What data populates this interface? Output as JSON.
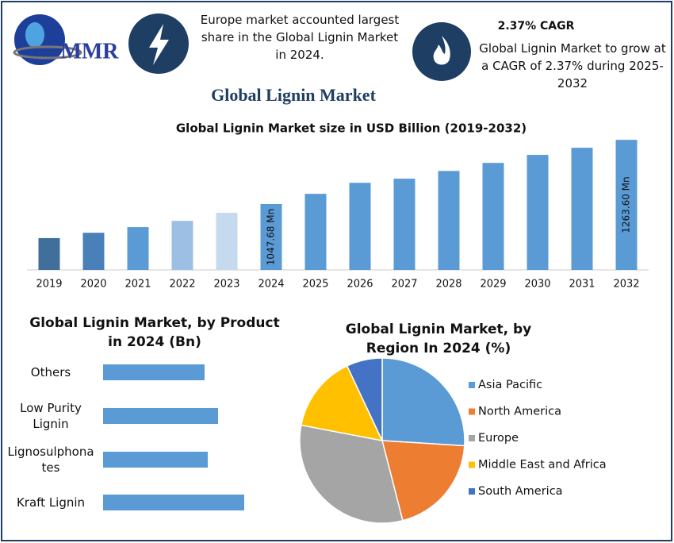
{
  "header": {
    "logo": "MMR",
    "note": "Europe market accounted largest share in the Global Lignin Market in 2024.",
    "cagr_title": "2.37% CAGR",
    "cagr_text": "Global Lignin Market to grow at a CAGR of 2.37% during 2025-2032",
    "title": "Global Lignin Market"
  },
  "chart_data": [
    {
      "type": "bar",
      "title": "Global Lignin Market size in USD Billion (2019-2032)",
      "categories": [
        "2019",
        "2020",
        "2021",
        "2022",
        "2023",
        "2024",
        "2025",
        "2026",
        "2027",
        "2028",
        "2029",
        "2030",
        "2031",
        "2032"
      ],
      "values": [
        933,
        951,
        970,
        991,
        1018,
        1047.68,
        1082,
        1119,
        1133,
        1159,
        1186,
        1213,
        1237,
        1263.6
      ],
      "value_labels": [
        null,
        null,
        null,
        null,
        null,
        "1047.68 Mn",
        null,
        null,
        null,
        null,
        null,
        null,
        null,
        "1263.60 Mn"
      ],
      "colors": [
        "#3f6f9a",
        "#4a80b8",
        "#5b9bd5",
        "#9dbfe3",
        "#c5d9ef",
        "#5b9bd5",
        "#5b9bd5",
        "#5b9bd5",
        "#5b9bd5",
        "#5b9bd5",
        "#5b9bd5",
        "#5b9bd5",
        "#5b9bd5",
        "#5b9bd5"
      ],
      "ylim": [
        826,
        1280
      ]
    },
    {
      "type": "hbar",
      "title": "Global Lignin Market, by Product in 2024 (Bn)",
      "categories": [
        "Others",
        "Low Purity Lignin",
        "Lignosulphonates",
        "Kraft Lignin"
      ],
      "values": [
        128,
        145,
        132,
        178
      ],
      "color": "#5b9bd5",
      "xlim": [
        0,
        200
      ]
    },
    {
      "type": "pie",
      "title": "Global Lignin Market, by Region In 2024 (%)",
      "categories": [
        "Asia Pacific",
        "North America",
        "Europe",
        "Middle East and Africa",
        "South America"
      ],
      "values": [
        26,
        20,
        32,
        15,
        7
      ],
      "colors": [
        "#5b9bd5",
        "#ed7d31",
        "#a5a5a5",
        "#ffc000",
        "#4472c4"
      ],
      "legend": "right"
    }
  ]
}
